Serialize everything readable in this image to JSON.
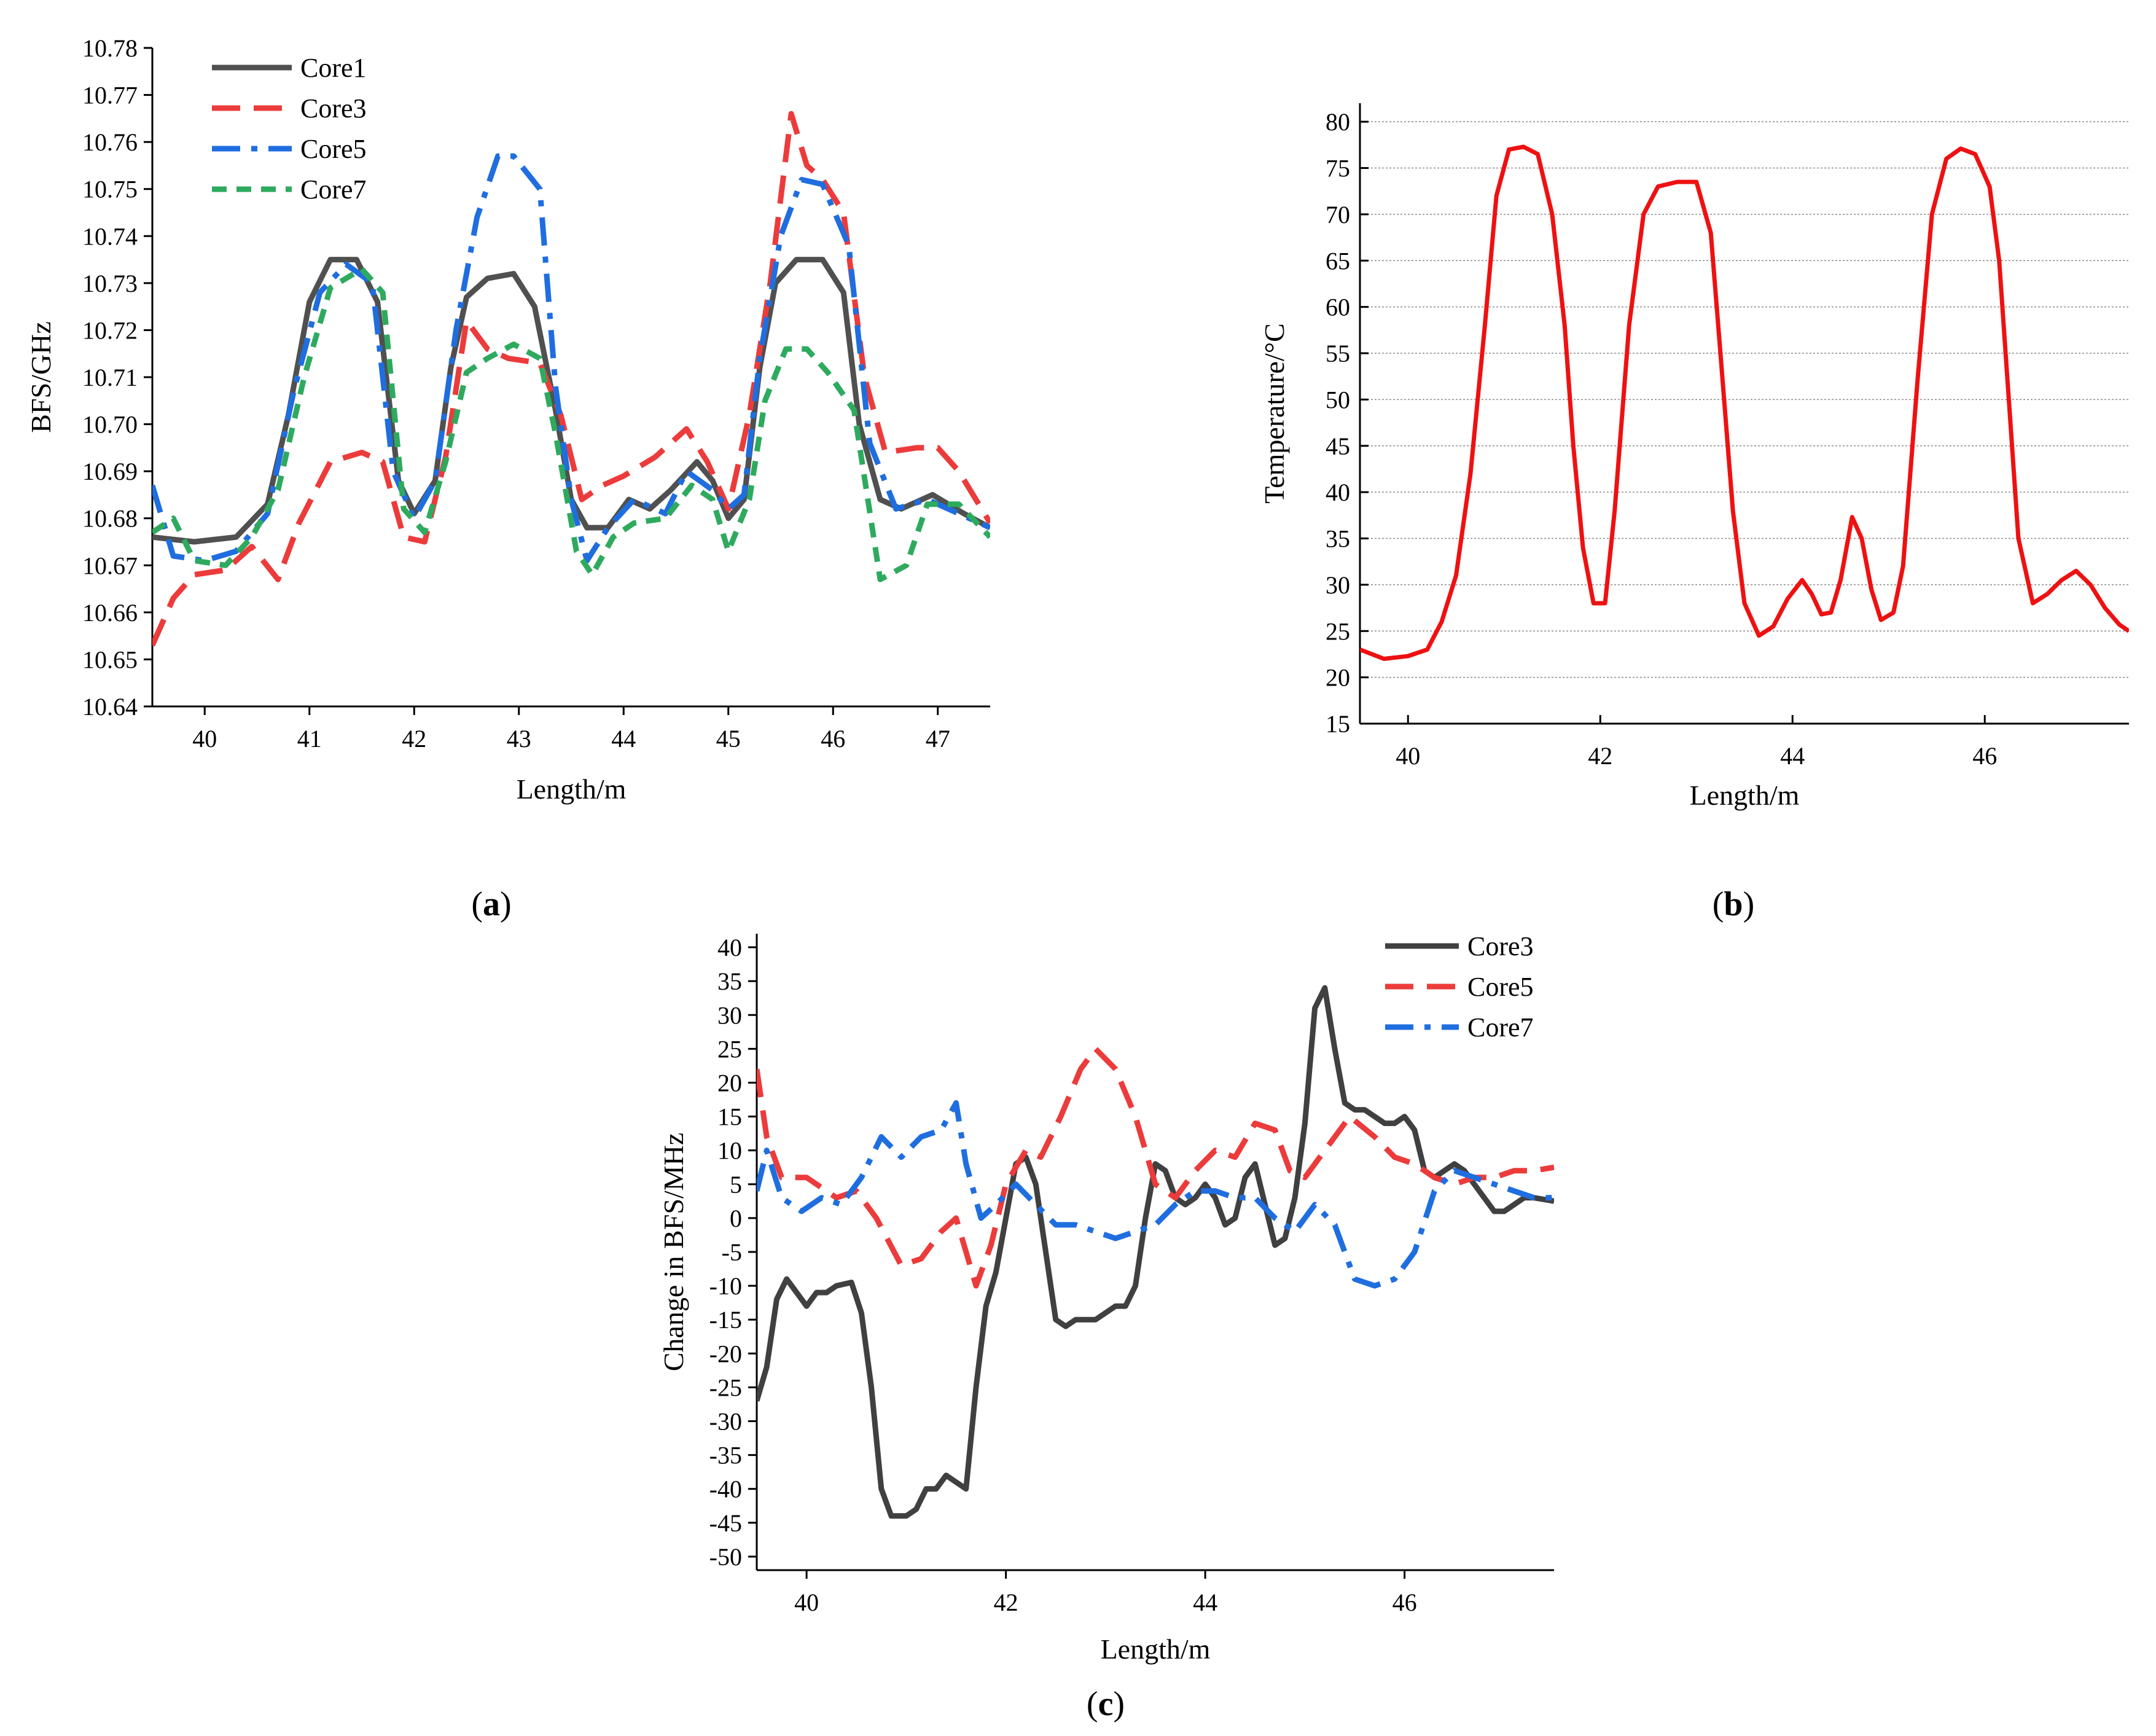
{
  "chart_data": [
    {
      "id": "a",
      "type": "line",
      "panel_label": "(a)",
      "panel_label_parts": [
        "(",
        "a",
        ")"
      ],
      "xlabel": "Length/m",
      "ylabel": "BFS/GHz",
      "xlim": [
        39.5,
        47.5
      ],
      "ylim": [
        10.64,
        10.78
      ],
      "x_ticks": [
        40,
        41,
        42,
        43,
        44,
        45,
        46,
        47
      ],
      "y_ticks": [
        10.64,
        10.65,
        10.66,
        10.67,
        10.68,
        10.69,
        10.7,
        10.71,
        10.72,
        10.73,
        10.74,
        10.75,
        10.76,
        10.77,
        10.78
      ],
      "y_tick_labels": [
        "10.64",
        "10.65",
        "10.66",
        "10.67",
        "10.68",
        "10.69",
        "10.70",
        "10.71",
        "10.72",
        "10.73",
        "10.74",
        "10.75",
        "10.76",
        "10.77",
        "10.78"
      ],
      "grid": false,
      "legend_position": "top-left",
      "series": [
        {
          "name": "Core1",
          "color": "#505050",
          "dash": "solid",
          "x": [
            39.5,
            39.9,
            40.3,
            40.6,
            40.8,
            41.0,
            41.2,
            41.45,
            41.65,
            41.85,
            42.0,
            42.2,
            42.35,
            42.5,
            42.7,
            42.95,
            43.15,
            43.35,
            43.5,
            43.65,
            43.85,
            44.05,
            44.25,
            44.45,
            44.7,
            44.85,
            45.0,
            45.15,
            45.3,
            45.45,
            45.65,
            45.9,
            46.1,
            46.25,
            46.45,
            46.65,
            46.95,
            47.25,
            47.5
          ],
          "y": [
            10.676,
            10.675,
            10.676,
            10.683,
            10.702,
            10.726,
            10.735,
            10.735,
            10.726,
            10.688,
            10.681,
            10.688,
            10.712,
            10.727,
            10.731,
            10.732,
            10.725,
            10.703,
            10.684,
            10.678,
            10.678,
            10.684,
            10.682,
            10.686,
            10.692,
            10.688,
            10.68,
            10.684,
            10.712,
            10.73,
            10.735,
            10.735,
            10.728,
            10.7,
            10.684,
            10.682,
            10.685,
            10.681,
            10.678
          ]
        },
        {
          "name": "Core3",
          "color": "#ec3b3b",
          "dash": "dashed",
          "x": [
            39.5,
            39.7,
            39.9,
            40.2,
            40.45,
            40.7,
            40.9,
            41.2,
            41.5,
            41.7,
            41.9,
            42.1,
            42.3,
            42.5,
            42.7,
            42.9,
            43.2,
            43.4,
            43.6,
            43.8,
            44.0,
            44.3,
            44.6,
            44.8,
            45.0,
            45.2,
            45.4,
            45.6,
            45.75,
            45.9,
            46.1,
            46.3,
            46.5,
            46.8,
            47.0,
            47.2,
            47.5
          ],
          "y": [
            10.653,
            10.663,
            10.668,
            10.669,
            10.674,
            10.667,
            10.679,
            10.692,
            10.694,
            10.692,
            10.676,
            10.675,
            10.693,
            10.722,
            10.716,
            10.714,
            10.713,
            10.702,
            10.684,
            10.687,
            10.689,
            10.693,
            10.699,
            10.692,
            10.682,
            10.702,
            10.73,
            10.766,
            10.755,
            10.752,
            10.745,
            10.71,
            10.694,
            10.695,
            10.695,
            10.69,
            10.679
          ]
        },
        {
          "name": "Core5",
          "color": "#1f6ee0",
          "dash": "dashdot",
          "x": [
            39.5,
            39.7,
            40.0,
            40.3,
            40.6,
            40.85,
            41.1,
            41.35,
            41.6,
            41.8,
            42.0,
            42.2,
            42.4,
            42.6,
            42.8,
            42.95,
            43.2,
            43.35,
            43.5,
            43.65,
            43.85,
            44.1,
            44.4,
            44.6,
            44.85,
            45.0,
            45.15,
            45.3,
            45.5,
            45.7,
            45.9,
            46.15,
            46.35,
            46.6,
            46.9,
            47.2,
            47.5
          ],
          "y": [
            10.687,
            10.672,
            10.671,
            10.673,
            10.681,
            10.707,
            10.728,
            10.734,
            10.73,
            10.69,
            10.68,
            10.688,
            10.72,
            10.744,
            10.757,
            10.757,
            10.75,
            10.708,
            10.684,
            10.671,
            10.678,
            10.684,
            10.681,
            10.69,
            10.686,
            10.682,
            10.685,
            10.714,
            10.74,
            10.752,
            10.751,
            10.738,
            10.696,
            10.682,
            10.684,
            10.681,
            10.678
          ]
        },
        {
          "name": "Core7",
          "color": "#2eaa5e",
          "dash": "dotted",
          "x": [
            39.5,
            39.7,
            39.9,
            40.2,
            40.45,
            40.7,
            40.95,
            41.2,
            41.5,
            41.7,
            41.9,
            42.1,
            42.3,
            42.5,
            42.7,
            42.95,
            43.2,
            43.35,
            43.55,
            43.7,
            43.9,
            44.1,
            44.4,
            44.65,
            44.85,
            45.0,
            45.2,
            45.35,
            45.55,
            45.75,
            45.95,
            46.2,
            46.45,
            46.7,
            46.9,
            47.2,
            47.5
          ],
          "y": [
            10.677,
            10.68,
            10.671,
            10.67,
            10.676,
            10.686,
            10.71,
            10.729,
            10.733,
            10.728,
            10.682,
            10.677,
            10.692,
            10.711,
            10.714,
            10.717,
            10.714,
            10.698,
            10.673,
            10.668,
            10.676,
            10.679,
            10.68,
            10.687,
            10.684,
            10.673,
            10.684,
            10.705,
            10.716,
            10.716,
            10.711,
            10.703,
            10.667,
            10.67,
            10.683,
            10.683,
            10.676
          ]
        }
      ]
    },
    {
      "id": "b",
      "type": "line",
      "panel_label": "(b)",
      "panel_label_parts": [
        "(",
        "b",
        ")"
      ],
      "xlabel": "Length/m",
      "ylabel": "Temperature/°C",
      "xlim": [
        39.5,
        47.5
      ],
      "ylim": [
        15,
        82
      ],
      "x_ticks": [
        40,
        42,
        44,
        46
      ],
      "y_ticks": [
        15,
        20,
        25,
        30,
        35,
        40,
        45,
        50,
        55,
        60,
        65,
        70,
        75,
        80
      ],
      "grid": true,
      "series": [
        {
          "name": "Temperature",
          "color": "#ee1111",
          "dash": "solid",
          "x": [
            39.5,
            39.75,
            40.0,
            40.2,
            40.35,
            40.5,
            40.65,
            40.8,
            40.92,
            41.05,
            41.2,
            41.35,
            41.5,
            41.63,
            41.72,
            41.82,
            41.93,
            42.05,
            42.15,
            42.3,
            42.45,
            42.6,
            42.8,
            43.0,
            43.15,
            43.25,
            43.38,
            43.5,
            43.65,
            43.8,
            43.95,
            44.1,
            44.2,
            44.3,
            44.4,
            44.5,
            44.62,
            44.72,
            44.82,
            44.92,
            45.05,
            45.15,
            45.3,
            45.45,
            45.6,
            45.75,
            45.9,
            46.05,
            46.15,
            46.25,
            46.35,
            46.5,
            46.65,
            46.8,
            46.95,
            47.1,
            47.25,
            47.4,
            47.5
          ],
          "y": [
            23,
            22,
            22.3,
            23,
            26,
            31,
            42,
            58,
            72,
            77,
            77.3,
            76.5,
            70,
            58,
            45,
            34,
            28,
            28,
            38,
            58,
            70,
            73,
            73.5,
            73.5,
            68,
            55,
            38,
            28,
            24.5,
            25.5,
            28.5,
            30.5,
            29,
            26.8,
            27,
            30.5,
            37.3,
            35,
            29.5,
            26.2,
            27,
            32,
            52,
            70,
            76,
            77.1,
            76.5,
            73,
            65,
            50,
            35,
            28,
            29,
            30.5,
            31.5,
            30,
            27.5,
            25.7,
            25
          ]
        }
      ]
    },
    {
      "id": "c",
      "type": "line",
      "panel_label": "(c)",
      "panel_label_parts": [
        "(",
        "c",
        ")"
      ],
      "xlabel": "Length/m",
      "ylabel": "Change in BFS/MHz",
      "xlim": [
        39.5,
        47.5
      ],
      "ylim": [
        -52,
        42
      ],
      "x_ticks": [
        40,
        42,
        44,
        46
      ],
      "y_ticks": [
        -50,
        -45,
        -40,
        -35,
        -30,
        -25,
        -20,
        -15,
        -10,
        -5,
        0,
        5,
        10,
        15,
        20,
        25,
        30,
        35,
        40
      ],
      "grid": false,
      "legend_position": "top-right",
      "series": [
        {
          "name": "Core3",
          "color": "#404040",
          "dash": "solid",
          "x": [
            39.5,
            39.6,
            39.7,
            39.8,
            39.9,
            40.0,
            40.1,
            40.2,
            40.3,
            40.45,
            40.55,
            40.65,
            40.75,
            40.85,
            41.0,
            41.1,
            41.2,
            41.3,
            41.4,
            41.5,
            41.6,
            41.7,
            41.8,
            41.9,
            42.0,
            42.1,
            42.2,
            42.3,
            42.4,
            42.5,
            42.6,
            42.7,
            42.8,
            42.9,
            43.0,
            43.1,
            43.2,
            43.3,
            43.4,
            43.5,
            43.6,
            43.7,
            43.8,
            43.9,
            44.0,
            44.1,
            44.2,
            44.3,
            44.4,
            44.5,
            44.6,
            44.7,
            44.8,
            44.9,
            45.0,
            45.1,
            45.2,
            45.3,
            45.4,
            45.5,
            45.6,
            45.7,
            45.8,
            45.9,
            46.0,
            46.1,
            46.2,
            46.3,
            46.4,
            46.5,
            46.6,
            46.7,
            46.8,
            46.9,
            47.0,
            47.1,
            47.2,
            47.3,
            47.5
          ],
          "y": [
            -27,
            -22,
            -12,
            -9,
            -11,
            -13,
            -11,
            -11,
            -10,
            -9.5,
            -14,
            -25,
            -40,
            -44,
            -44,
            -43,
            -40,
            -40,
            -38,
            -39,
            -40,
            -25,
            -13,
            -8,
            0,
            8,
            9,
            5,
            -5,
            -15,
            -16,
            -15,
            -15,
            -15,
            -14,
            -13,
            -13,
            -10,
            0,
            8,
            7,
            3,
            2,
            3,
            5,
            3,
            -1,
            0,
            6,
            8,
            2,
            -4,
            -3,
            3,
            14,
            31,
            34,
            25,
            17,
            16,
            16,
            15,
            14,
            14,
            15,
            13,
            7,
            6,
            7,
            8,
            7,
            5,
            3,
            1,
            1,
            2,
            3,
            3,
            2.5
          ]
        },
        {
          "name": "Core5",
          "color": "#ec3b3b",
          "dash": "dashed",
          "x": [
            39.5,
            39.6,
            39.75,
            40.0,
            40.3,
            40.5,
            40.7,
            40.95,
            41.15,
            41.35,
            41.5,
            41.7,
            41.85,
            42.0,
            42.2,
            42.35,
            42.55,
            42.75,
            42.9,
            43.1,
            43.3,
            43.5,
            43.7,
            43.9,
            44.1,
            44.3,
            44.5,
            44.7,
            44.85,
            45.0,
            45.2,
            45.45,
            45.7,
            45.9,
            46.1,
            46.3,
            46.5,
            46.7,
            46.9,
            47.1,
            47.3,
            47.5
          ],
          "y": [
            22,
            12,
            6,
            6,
            3,
            4,
            0,
            -7,
            -6,
            -2,
            0,
            -10,
            -4,
            5,
            10,
            9,
            15,
            22,
            25,
            22,
            15,
            5,
            3,
            7,
            10,
            9,
            14,
            13,
            7,
            6,
            10,
            15,
            12,
            9,
            8,
            6,
            5,
            6,
            6,
            7,
            7,
            7.5
          ]
        },
        {
          "name": "Core7",
          "color": "#1f6ee0",
          "dash": "dashdot",
          "x": [
            39.5,
            39.6,
            39.75,
            39.95,
            40.15,
            40.35,
            40.55,
            40.75,
            40.95,
            41.15,
            41.35,
            41.5,
            41.6,
            41.75,
            41.9,
            42.1,
            42.3,
            42.5,
            42.7,
            42.9,
            43.1,
            43.3,
            43.5,
            43.7,
            43.9,
            44.1,
            44.3,
            44.5,
            44.7,
            44.9,
            45.1,
            45.3,
            45.5,
            45.7,
            45.9,
            46.1,
            46.3,
            46.5,
            46.7,
            46.9,
            47.1,
            47.3,
            47.5
          ],
          "y": [
            4,
            10,
            3,
            1,
            3,
            2,
            6,
            12,
            9,
            12,
            13,
            17,
            8,
            0,
            2,
            5,
            2,
            -1,
            -1,
            -2,
            -3,
            -2,
            -1,
            2,
            4,
            4,
            3,
            3,
            0,
            -2,
            2,
            -1,
            -9,
            -10,
            -9,
            -5,
            4,
            7,
            6,
            5,
            4,
            3,
            3
          ]
        }
      ]
    }
  ]
}
